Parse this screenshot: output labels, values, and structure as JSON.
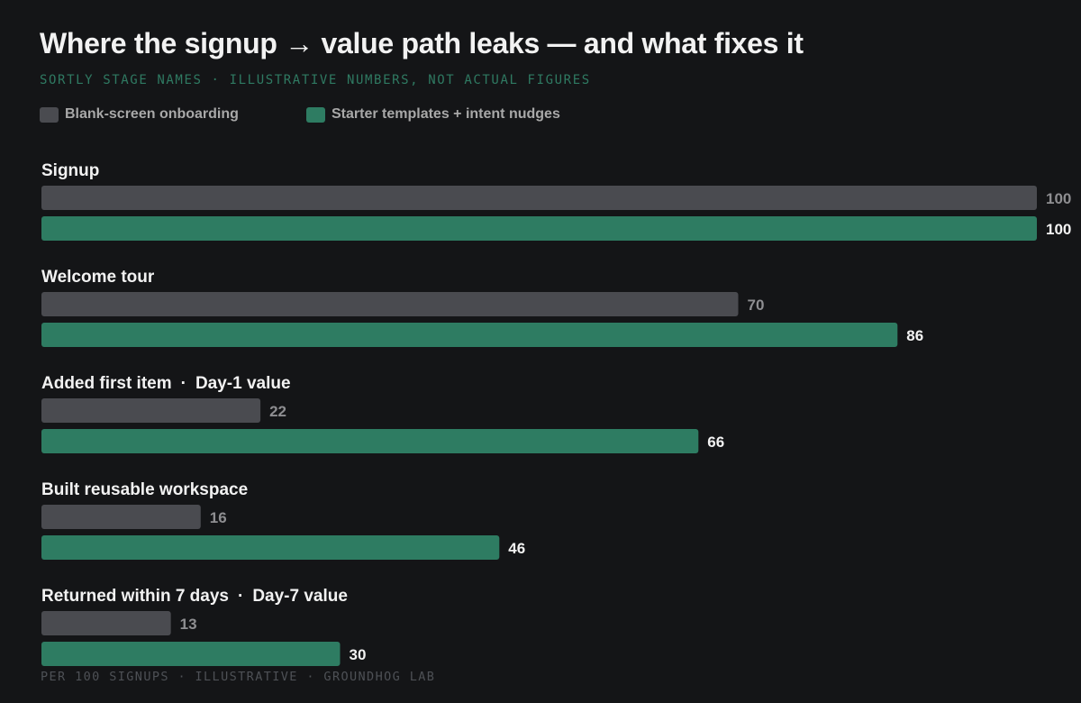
{
  "chart_data": {
    "type": "bar",
    "orientation": "horizontal",
    "title": "Where the signup → value path leaks — and what fixes it",
    "subtitle": "SORTLY STAGE NAMES · ILLUSTRATIVE NUMBERS, NOT ACTUAL FIGURES",
    "footer": "PER 100 SIGNUPS · ILLUSTRATIVE · GROUNDHOG LAB",
    "legend_position": "top-left",
    "grid": false,
    "xlim": [
      0,
      100
    ],
    "categories": [
      {
        "name": "Signup",
        "milestone": ""
      },
      {
        "name": "Welcome tour",
        "milestone": ""
      },
      {
        "name": "Added first item",
        "milestone": "Day-1 value"
      },
      {
        "name": "Built reusable workspace",
        "milestone": ""
      },
      {
        "name": "Returned within 7 days",
        "milestone": "Day-7 value"
      }
    ],
    "series": [
      {
        "name": "Blank-screen onboarding",
        "color": "#4a4b50",
        "label_color": "#8e8e91",
        "values": [
          100,
          70,
          22,
          16,
          13
        ]
      },
      {
        "name": "Starter templates + intent nudges",
        "color": "#2e7c62",
        "label_color": "#f2f2f2",
        "values": [
          100,
          86,
          66,
          46,
          30
        ]
      }
    ]
  }
}
